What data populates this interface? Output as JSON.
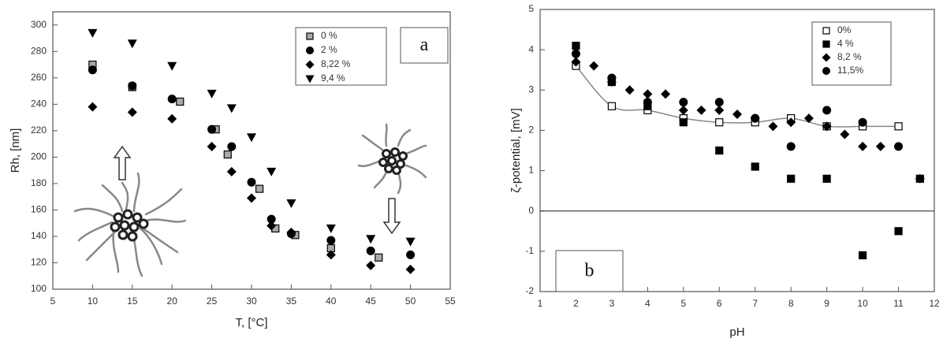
{
  "chart_data": [
    {
      "type": "scatter",
      "annotation": "a",
      "xlabel": "T, [°C]",
      "ylabel": "Rh, [nm]",
      "xlim": [
        5,
        55
      ],
      "xticks": [
        5,
        10,
        15,
        20,
        25,
        30,
        35,
        40,
        45,
        50,
        55
      ],
      "ylim": [
        100,
        310
      ],
      "yticks": [
        100,
        120,
        140,
        160,
        180,
        200,
        220,
        240,
        260,
        280,
        300
      ],
      "legend": "upper right",
      "series": [
        {
          "name": "0 %",
          "marker": "square-half",
          "color": "#000000",
          "x": [
            10,
            15,
            21,
            25.5,
            27,
            31,
            33,
            35.5,
            40,
            46
          ],
          "values": [
            270,
            253,
            242,
            221,
            202,
            176,
            146,
            141,
            131,
            124
          ]
        },
        {
          "name": "2 %",
          "marker": "circle",
          "color": "#000000",
          "x": [
            10,
            15,
            20,
            25,
            27.5,
            30,
            32.5,
            35,
            40,
            45,
            50
          ],
          "values": [
            266,
            254,
            244,
            221,
            208,
            181,
            153,
            142,
            137,
            129,
            126
          ]
        },
        {
          "name": "8,22 %",
          "marker": "diamond",
          "color": "#000000",
          "x": [
            10,
            15,
            20,
            25,
            27.5,
            30,
            32.5,
            35,
            40,
            45,
            50
          ],
          "values": [
            238,
            234,
            229,
            208,
            189,
            169,
            148,
            143,
            126,
            118,
            115
          ]
        },
        {
          "name": "9,4 %",
          "marker": "triangle-down",
          "color": "#000000",
          "x": [
            10,
            15,
            20,
            25,
            27.5,
            30,
            32.5,
            35,
            40,
            45,
            50
          ],
          "values": [
            294,
            286,
            269,
            248,
            237,
            215,
            189,
            165,
            146,
            138,
            136
          ]
        }
      ]
    },
    {
      "type": "scatter",
      "annotation": "b",
      "xlabel": "pH",
      "ylabel": "ζ-potential, [mV]",
      "xlim": [
        1,
        12
      ],
      "xticks": [
        1,
        2,
        3,
        4,
        5,
        6,
        7,
        8,
        9,
        10,
        11,
        12
      ],
      "ylim": [
        -2,
        5
      ],
      "yticks": [
        -2,
        -1,
        0,
        1,
        2,
        3,
        4,
        5
      ],
      "reference_line": 0,
      "legend": "upper right",
      "series": [
        {
          "name": "0%",
          "marker": "square-open",
          "color": "#000000",
          "fit_line": true,
          "line_color": "#888888",
          "x": [
            2,
            3,
            4,
            5,
            6,
            7,
            8,
            9,
            10,
            11
          ],
          "values": [
            3.6,
            2.6,
            2.5,
            2.3,
            2.2,
            2.2,
            2.3,
            2.1,
            2.1,
            2.1
          ]
        },
        {
          "name": "4 %",
          "marker": "square",
          "color": "#000000",
          "x": [
            2,
            3,
            4,
            5,
            6,
            7,
            8,
            9,
            10,
            11,
            11.6
          ],
          "values": [
            4.1,
            3.2,
            2.6,
            2.2,
            1.5,
            1.1,
            0.8,
            0.8,
            -1.1,
            -0.5,
            0.8
          ]
        },
        {
          "name": "8,2 %",
          "marker": "diamond",
          "color": "#000000",
          "x": [
            2,
            2.5,
            3,
            3.5,
            4,
            4.5,
            5,
            5.5,
            6,
            6.5,
            7,
            7.5,
            8,
            8.5,
            9,
            9.5,
            10,
            10.5,
            11.6
          ],
          "values": [
            3.7,
            3.6,
            3.2,
            3.0,
            2.9,
            2.9,
            2.5,
            2.5,
            2.5,
            2.4,
            2.3,
            2.1,
            2.2,
            2.3,
            2.1,
            1.9,
            1.6,
            1.6,
            0.8
          ]
        },
        {
          "name": "11,5%",
          "marker": "circle",
          "color": "#000000",
          "x": [
            2,
            3,
            4,
            5,
            6,
            7,
            8,
            9,
            10,
            11
          ],
          "values": [
            3.9,
            3.3,
            2.7,
            2.7,
            2.7,
            2.3,
            1.6,
            2.5,
            2.2,
            1.6
          ]
        }
      ]
    }
  ]
}
